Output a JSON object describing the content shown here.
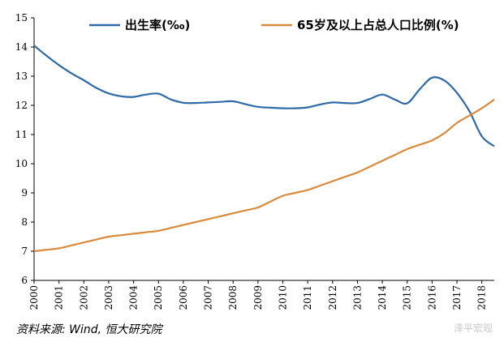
{
  "chart_data": {
    "type": "line",
    "x": [
      2000,
      2000.5,
      2001,
      2001.5,
      2002,
      2002.5,
      2003,
      2003.5,
      2004,
      2004.5,
      2005,
      2005.5,
      2006,
      2006.5,
      2007,
      2007.5,
      2008,
      2008.5,
      2009,
      2009.5,
      2010,
      2010.5,
      2011,
      2011.5,
      2012,
      2012.5,
      2013,
      2013.5,
      2014,
      2014.5,
      2015,
      2015.5,
      2016,
      2016.5,
      2017,
      2017.5,
      2018,
      2018.5
    ],
    "x_ticks": [
      "2000",
      "2001",
      "2002",
      "2003",
      "2004",
      "2005",
      "2006",
      "2007",
      "2008",
      "2009",
      "2010",
      "2011",
      "2012",
      "2013",
      "2014",
      "2015",
      "2016",
      "2017",
      "2018"
    ],
    "series": [
      {
        "name": "出生率(‰)",
        "color": "#2e6aa8",
        "values": [
          14.05,
          13.7,
          13.38,
          13.1,
          12.86,
          12.6,
          12.41,
          12.31,
          12.29,
          12.37,
          12.4,
          12.2,
          12.09,
          12.08,
          12.1,
          12.12,
          12.14,
          12.04,
          11.95,
          11.92,
          11.9,
          11.9,
          11.93,
          12.03,
          12.1,
          12.08,
          12.08,
          12.22,
          12.37,
          12.2,
          12.07,
          12.55,
          12.95,
          12.85,
          12.43,
          11.8,
          10.94,
          10.6
        ]
      },
      {
        "name": "65岁及以上占总人口比例(%)",
        "color": "#d98a3a",
        "values": [
          7.0,
          7.05,
          7.1,
          7.2,
          7.3,
          7.4,
          7.5,
          7.55,
          7.6,
          7.65,
          7.7,
          7.8,
          7.9,
          8.0,
          8.1,
          8.2,
          8.3,
          8.4,
          8.5,
          8.7,
          8.9,
          9.0,
          9.1,
          9.25,
          9.4,
          9.55,
          9.7,
          9.9,
          10.1,
          10.3,
          10.5,
          10.65,
          10.8,
          11.05,
          11.4,
          11.65,
          11.9,
          12.2
        ]
      }
    ],
    "ylim": [
      6,
      15
    ],
    "y_ticks": [
      6,
      7,
      8,
      9,
      10,
      11,
      12,
      13,
      14,
      15
    ],
    "grid": false,
    "legend": "top"
  },
  "source_note": "资料来源: Wind, 恒大研究院",
  "watermark": "泽平宏观"
}
